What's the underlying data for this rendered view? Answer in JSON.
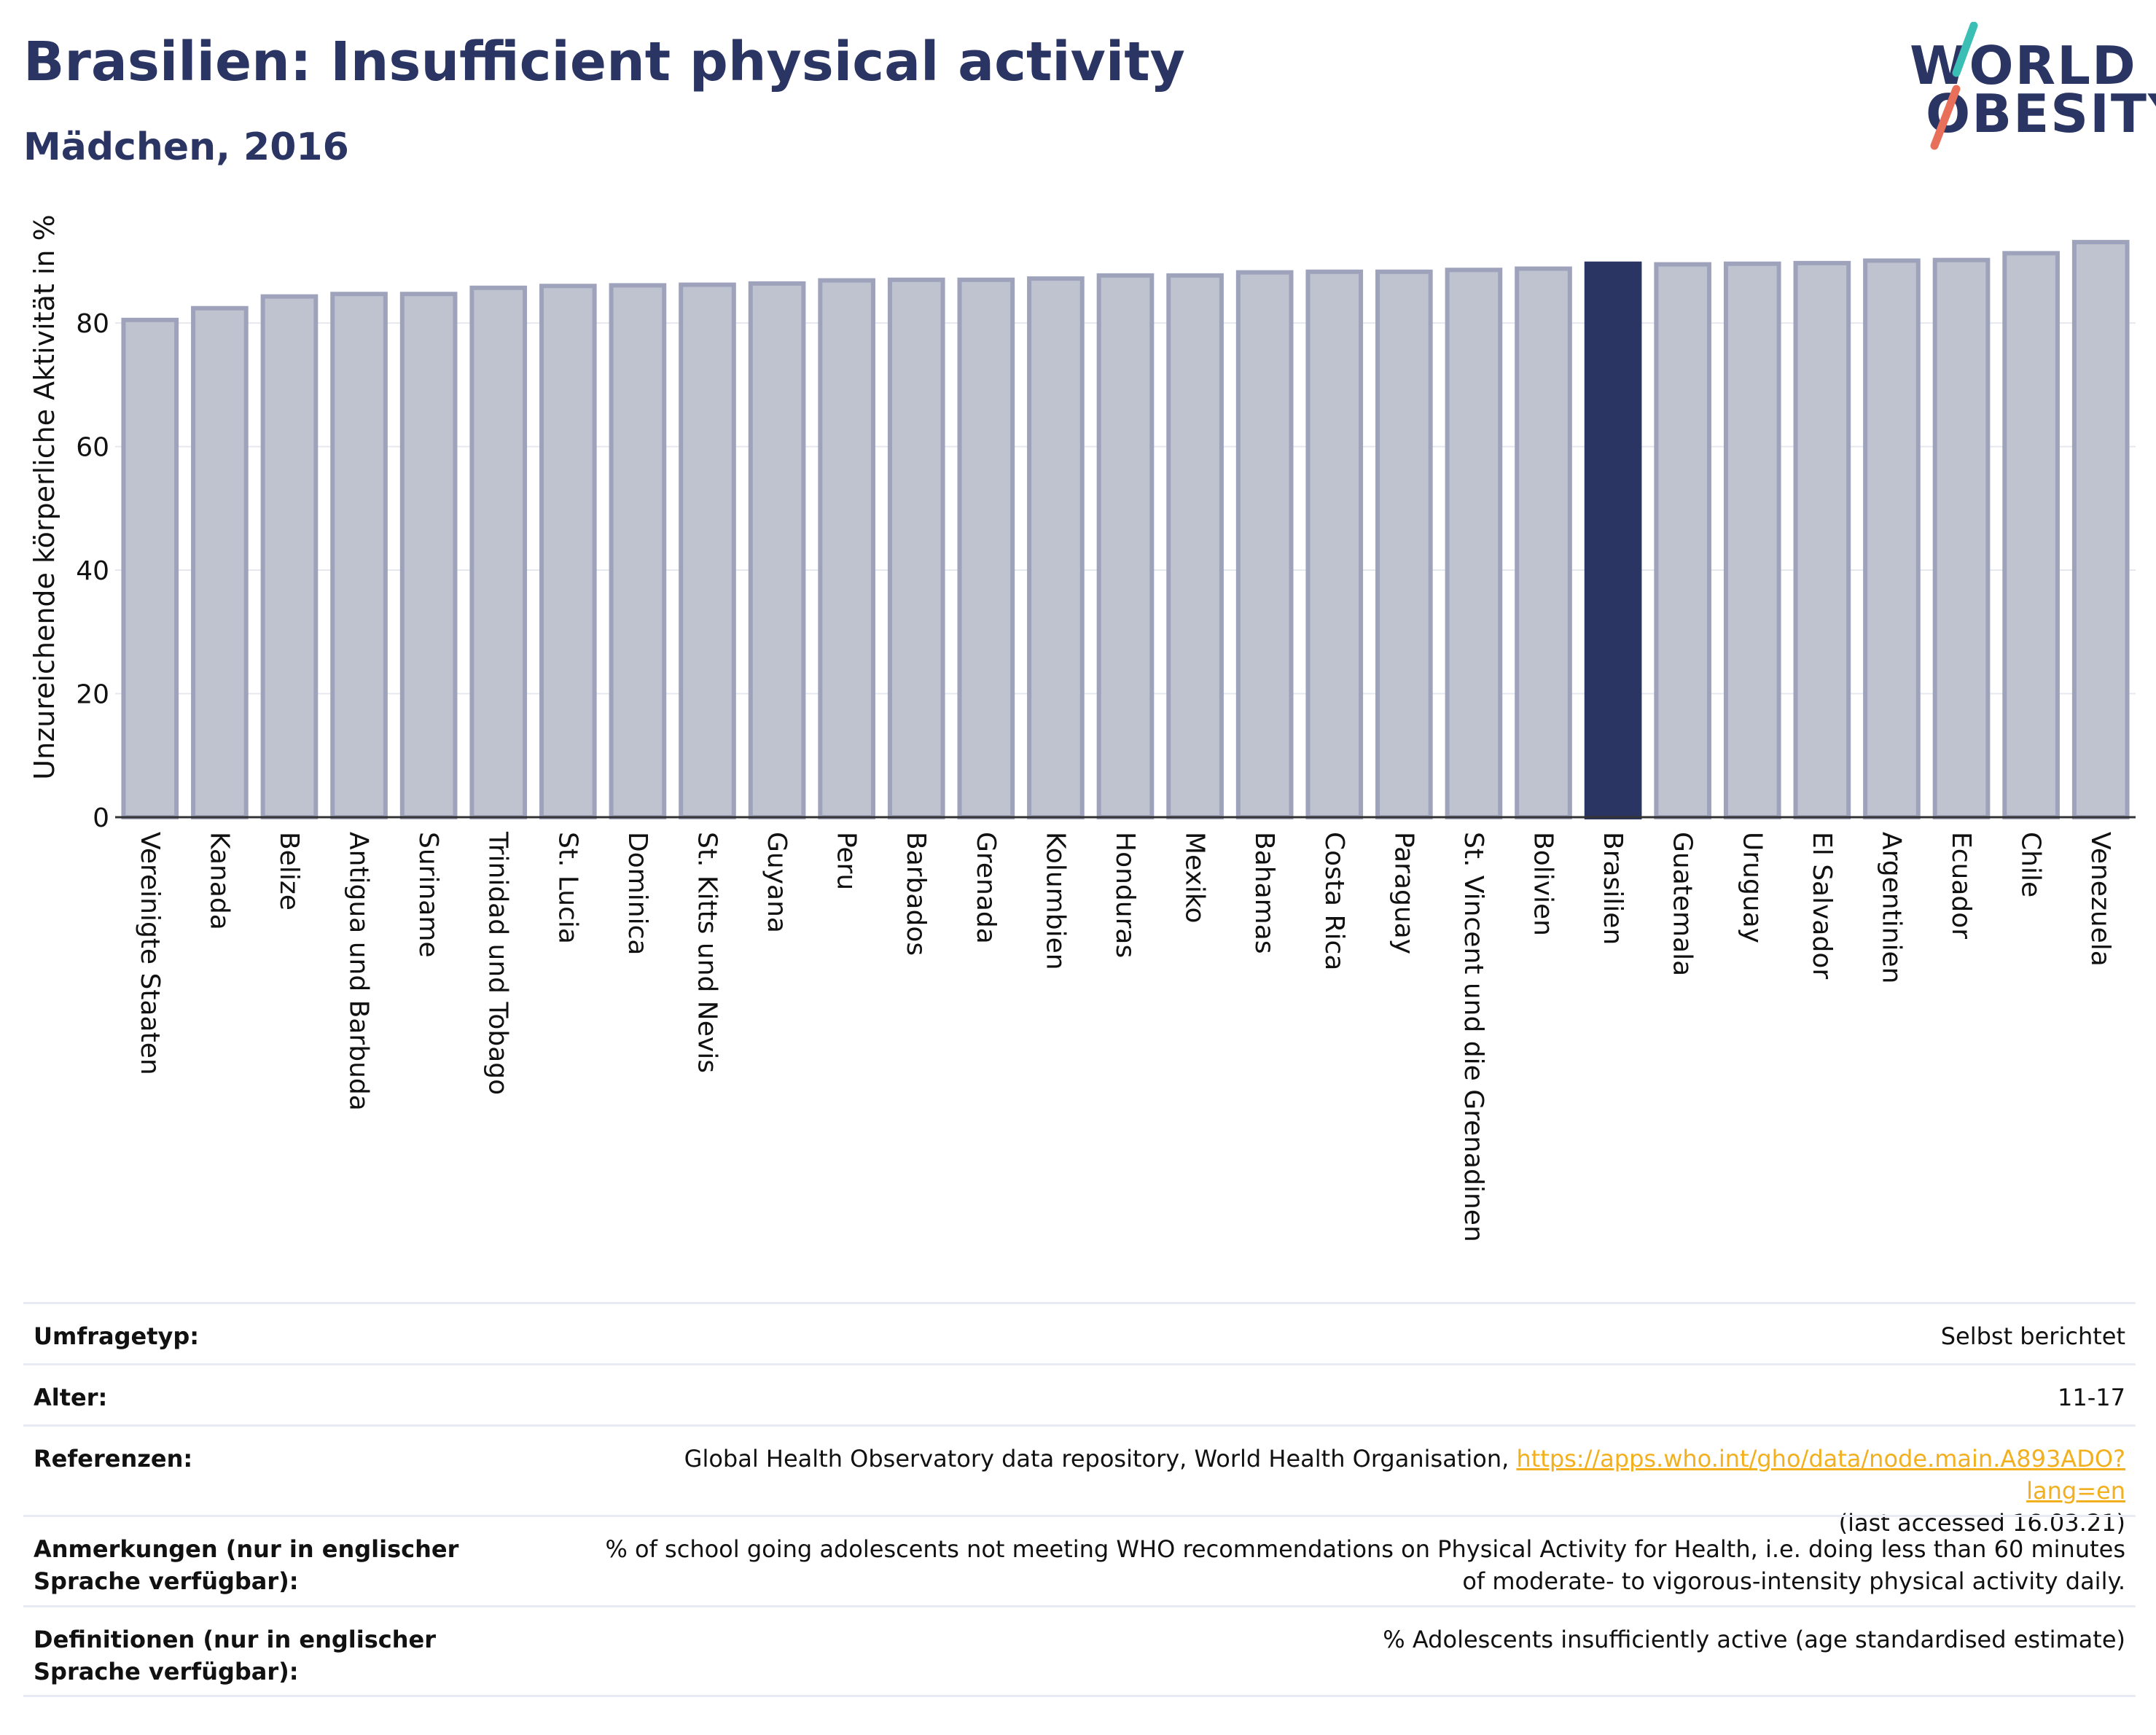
{
  "header": {
    "title": "Brasilien: Insufficient physical activity",
    "subtitle": "Mädchen, 2016"
  },
  "logo": {
    "line1": "WORLD",
    "line2": "OBESITY",
    "accent_colors": [
      "#3bbfb5",
      "#e8705a"
    ]
  },
  "colors": {
    "highlight_bar": "#2a3563",
    "other_bar_fill": "#bfc2cf",
    "other_bar_stroke": "#9ea3bb",
    "text_dark": "#2a3563",
    "link": "#f2b01e"
  },
  "chart_data": {
    "type": "bar",
    "ylabel": "Unzureichende körperliche Aktivität in %",
    "xlabel": "",
    "ylim": [
      0,
      95
    ],
    "yticks": [
      0,
      20,
      40,
      60,
      80
    ],
    "grid": true,
    "highlight": "Brasilien",
    "categories": [
      "Vereinigte Staaten",
      "Kanada",
      "Belize",
      "Antigua und Barbuda",
      "Suriname",
      "Trinidad und Tobago",
      "St. Lucia",
      "Dominica",
      "St. Kitts und Nevis",
      "Guyana",
      "Peru",
      "Barbados",
      "Grenada",
      "Kolumbien",
      "Honduras",
      "Mexiko",
      "Bahamas",
      "Costa Rica",
      "Paraguay",
      "St. Vincent und die Grenadinen",
      "Bolivien",
      "Brasilien",
      "Guatemala",
      "Uruguay",
      "El Salvador",
      "Argentinien",
      "Ecuador",
      "Chile",
      "Venezuela"
    ],
    "values": [
      80.5,
      82.4,
      84.3,
      84.7,
      84.7,
      85.7,
      86.0,
      86.1,
      86.2,
      86.4,
      86.9,
      87.0,
      87.0,
      87.2,
      87.7,
      87.7,
      88.2,
      88.3,
      88.3,
      88.6,
      88.8,
      89.6,
      89.5,
      89.6,
      89.7,
      90.1,
      90.2,
      91.3,
      93.1
    ]
  },
  "info_table": {
    "rows": [
      {
        "label": "Umfragetyp:",
        "value": "Selbst berichtet"
      },
      {
        "label": "Alter:",
        "value": "11-17"
      },
      {
        "label": "Referenzen:",
        "value": "Global Health Observatory data repository, World Health Organisation,",
        "link": "https://apps.who.int/gho/data/node.main.A893ADO?lang=en",
        "value_suffix": "(last accessed 16.03.21)"
      },
      {
        "label": "Anmerkungen (nur in englischer Sprache verfügbar):",
        "value": "% of school going adolescents not meeting WHO recommendations on Physical Activity for Health, i.e. doing less than 60 minutes of moderate- to vigorous-intensity physical activity daily."
      },
      {
        "label": "Definitionen (nur in englischer Sprache verfügbar):",
        "value": "% Adolescents insufficiently active (age standardised estimate)"
      }
    ]
  }
}
